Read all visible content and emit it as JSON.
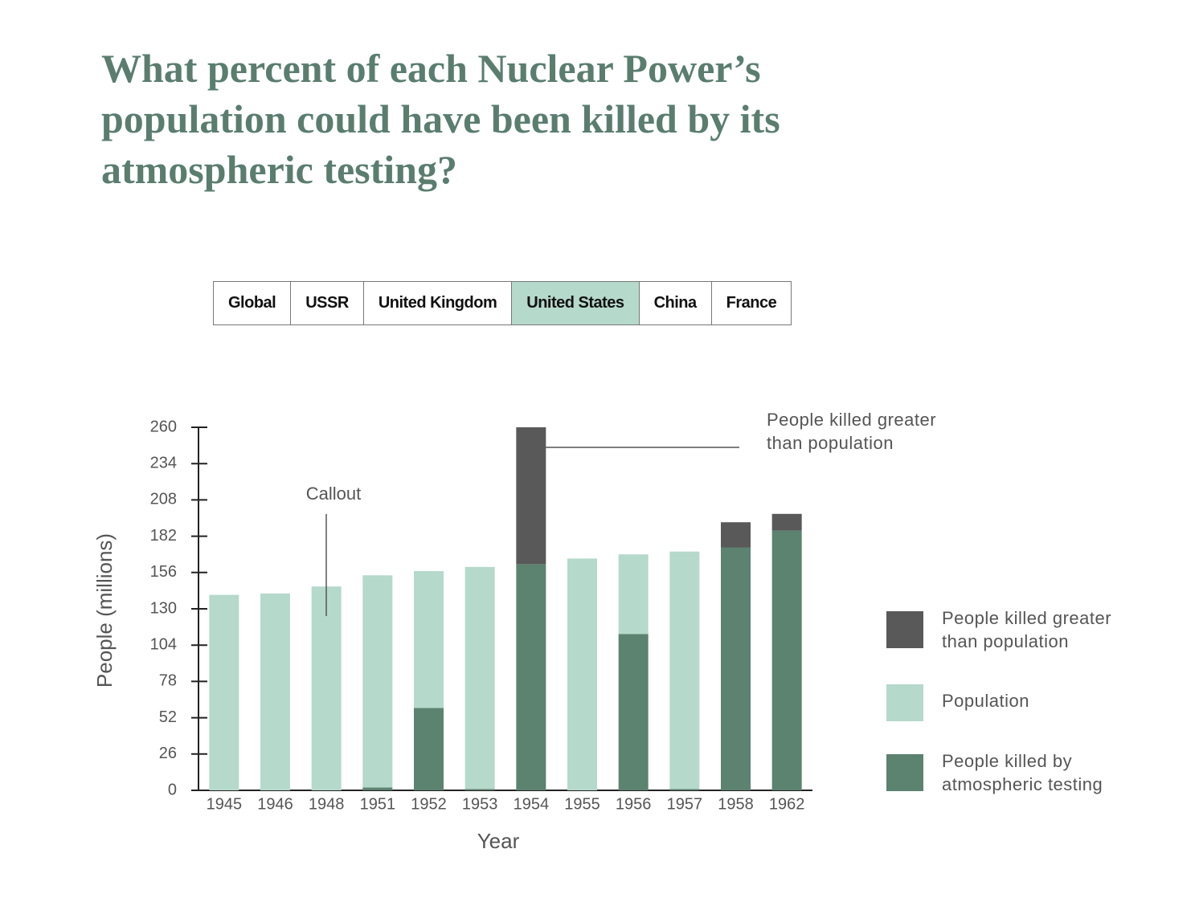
{
  "tabs": [
    "Global",
    "USSR",
    "United Kingdom",
    "United States",
    "China",
    "France"
  ],
  "active_tab": 3,
  "chart_data": {
    "type": "stacked-bar",
    "title": "What percent of each Nuclear Power’s population could have been killed by its atmospheric testing?",
    "categories": [
      "1945",
      "1946",
      "1948",
      "1951",
      "1952",
      "1953",
      "1954",
      "1955",
      "1956",
      "1957",
      "1958",
      "1962"
    ],
    "series": [
      {
        "name": "People killed by atmospheric testing",
        "color": "#5c8270",
        "values": [
          0,
          0,
          0,
          2,
          59,
          1,
          162,
          0,
          112,
          1,
          174,
          186
        ]
      },
      {
        "name": "Population",
        "color": "#b5d9cb",
        "values": [
          140,
          141,
          146,
          152,
          98,
          159,
          0,
          166,
          57,
          170,
          0,
          0
        ]
      },
      {
        "name": "People killed greater than population",
        "color": "#595959",
        "values": [
          0,
          0,
          0,
          0,
          0,
          0,
          98,
          0,
          0,
          0,
          18,
          12
        ]
      }
    ],
    "ylim": [
      0,
      260
    ],
    "yticks": [
      0,
      26,
      52,
      78,
      104,
      130,
      156,
      182,
      208,
      234,
      260
    ],
    "xlabel": "Year",
    "ylabel": "People (millions)",
    "annotations": [
      "Callout",
      "People killed greater than population"
    ]
  }
}
